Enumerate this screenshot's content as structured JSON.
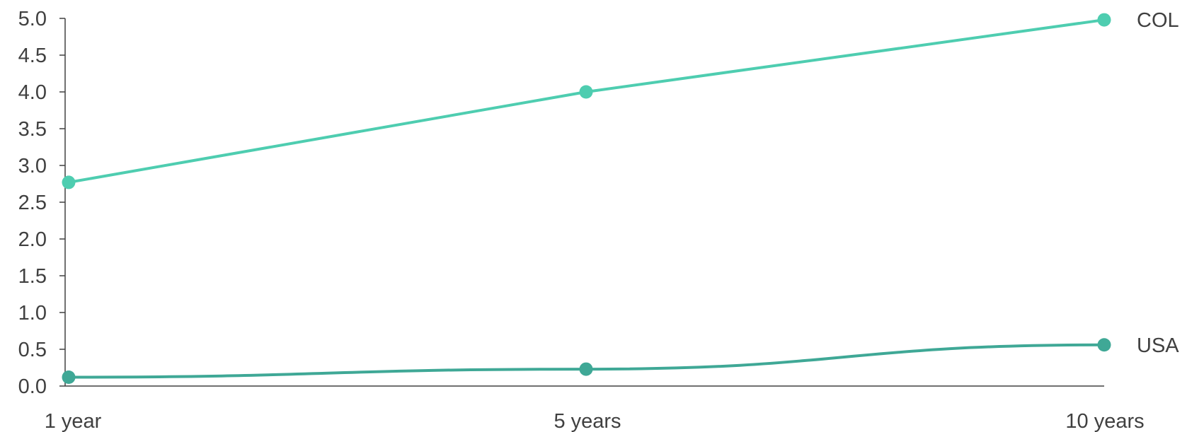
{
  "chart_data": {
    "type": "line",
    "title": "",
    "xlabel": "",
    "ylabel": "",
    "categories": [
      "1 year",
      "5 years",
      "10 years"
    ],
    "ylim": [
      0,
      5
    ],
    "yticks": [
      "0.0",
      "0.5",
      "1.0",
      "1.5",
      "2.0",
      "2.5",
      "3.0",
      "3.5",
      "4.0",
      "4.5",
      "5.0"
    ],
    "grid": false,
    "legend": "none",
    "series": [
      {
        "name": "COL",
        "values": [
          2.77,
          4.0,
          4.98
        ],
        "color": "#4ecdb0"
      },
      {
        "name": "USA",
        "values": [
          0.12,
          0.23,
          0.56
        ],
        "color": "#3fa896"
      }
    ],
    "axis_color": "#404040"
  }
}
